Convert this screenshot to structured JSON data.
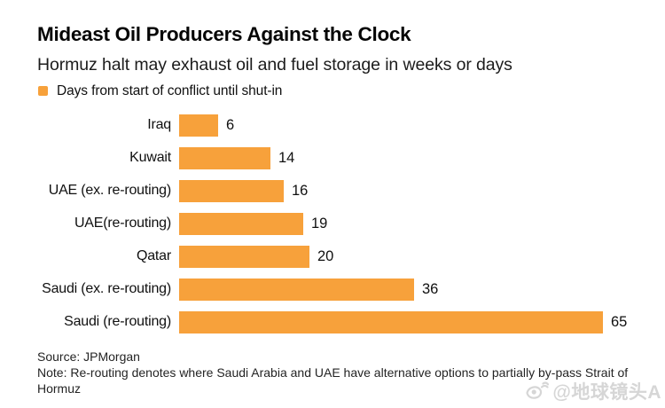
{
  "header": {
    "title": "Mideast Oil Producers Against the Clock",
    "subtitle": "Hormuz halt may exhaust oil and fuel storage in weeks or days"
  },
  "legend": {
    "label": "Days from start of conflict until shut-in",
    "color": "#F7A13B"
  },
  "chart_data": {
    "type": "bar",
    "orientation": "horizontal",
    "title": "Mideast Oil Producers Against the Clock",
    "subtitle": "Hormuz halt may exhaust oil and fuel storage in weeks or days",
    "series_label": "Days from start of conflict until shut-in",
    "categories": [
      "Iraq",
      "Kuwait",
      "UAE (ex. re-routing)",
      "UAE(re-routing)",
      "Qatar",
      "Saudi (ex. re-routing)",
      "Saudi (re-routing)"
    ],
    "values": [
      6,
      14,
      16,
      19,
      20,
      36,
      65
    ],
    "xlim": [
      0,
      65
    ],
    "bar_color": "#F7A13B",
    "value_labels": true,
    "grid": false,
    "legend_position": "top-left"
  },
  "footer": {
    "source": "Source: JPMorgan",
    "note": "Note: Re-routing denotes where Saudi Arabia and UAE have alternative options to partially by-pass Strait of Hormuz"
  },
  "watermark": {
    "text": "@地球镜头A",
    "icon": "weibo-eye-icon"
  }
}
